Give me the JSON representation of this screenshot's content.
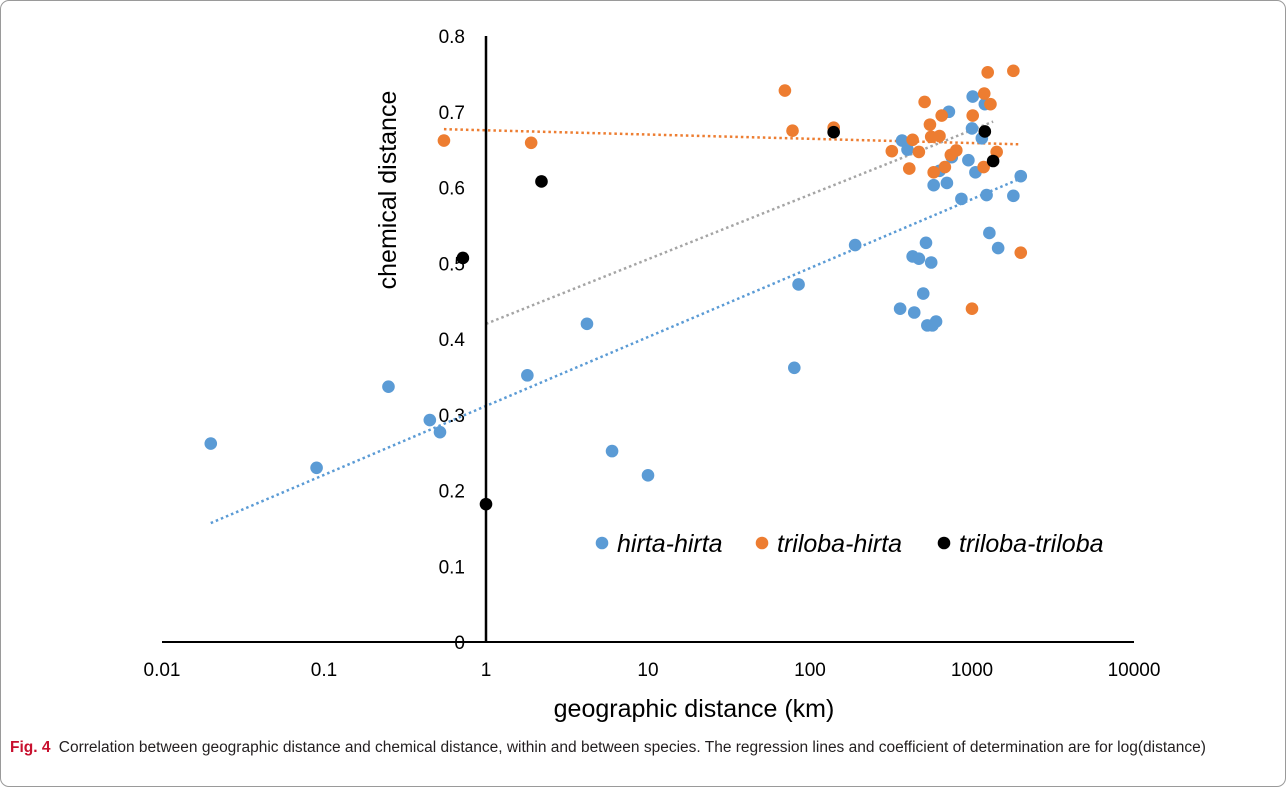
{
  "chart_data": {
    "type": "scatter",
    "xlabel": "geographic distance (km)",
    "ylabel": "chemical distance",
    "x_scale": "log",
    "xlim": [
      0.01,
      10000
    ],
    "ylim": [
      0,
      0.8
    ],
    "x_tick_labels": [
      "0.01",
      "0.1",
      "1",
      "10",
      "100",
      "1000",
      "10000"
    ],
    "x_tick_values": [
      0.01,
      0.1,
      1,
      10,
      100,
      1000,
      10000
    ],
    "y_tick_labels": [
      "0",
      "0.1",
      "0.2",
      "0.3",
      "0.4",
      "0.5",
      "0.6",
      "0.7",
      "0.8"
    ],
    "y_tick_values": [
      0,
      0.1,
      0.2,
      0.3,
      0.4,
      0.5,
      0.6,
      0.7,
      0.8
    ],
    "legend_position": "bottom-right",
    "grid": false,
    "series": [
      {
        "name": "hirta-hirta",
        "color": "#5b9bd5",
        "points": [
          [
            0.02,
            0.262
          ],
          [
            0.09,
            0.23
          ],
          [
            0.25,
            0.337
          ],
          [
            0.45,
            0.293
          ],
          [
            0.52,
            0.277
          ],
          [
            1.8,
            0.352
          ],
          [
            4.2,
            0.42
          ],
          [
            6,
            0.252
          ],
          [
            10,
            0.22
          ],
          [
            80,
            0.362
          ],
          [
            85,
            0.472
          ],
          [
            190,
            0.524
          ],
          [
            360,
            0.44
          ],
          [
            370,
            0.662
          ],
          [
            400,
            0.65
          ],
          [
            430,
            0.509
          ],
          [
            440,
            0.435
          ],
          [
            470,
            0.506
          ],
          [
            500,
            0.46
          ],
          [
            520,
            0.527
          ],
          [
            530,
            0.418
          ],
          [
            560,
            0.501
          ],
          [
            570,
            0.418
          ],
          [
            580,
            0.603
          ],
          [
            600,
            0.423
          ],
          [
            630,
            0.622
          ],
          [
            700,
            0.606
          ],
          [
            720,
            0.7
          ],
          [
            750,
            0.64
          ],
          [
            860,
            0.585
          ],
          [
            950,
            0.636
          ],
          [
            1000,
            0.678
          ],
          [
            1010,
            0.72
          ],
          [
            1050,
            0.62
          ],
          [
            1150,
            0.665
          ],
          [
            1200,
            0.71
          ],
          [
            1230,
            0.59
          ],
          [
            1280,
            0.54
          ],
          [
            1450,
            0.52
          ],
          [
            1800,
            0.589
          ],
          [
            2000,
            0.615
          ]
        ],
        "trendline": [
          [
            0.02,
            0.157
          ],
          [
            2000,
            0.612
          ]
        ]
      },
      {
        "name": "triloba-hirta",
        "color": "#ed7d31",
        "points": [
          [
            0.55,
            0.662
          ],
          [
            1.9,
            0.659
          ],
          [
            70,
            0.728
          ],
          [
            78,
            0.675
          ],
          [
            140,
            0.679
          ],
          [
            320,
            0.648
          ],
          [
            410,
            0.625
          ],
          [
            430,
            0.663
          ],
          [
            470,
            0.647
          ],
          [
            510,
            0.713
          ],
          [
            550,
            0.683
          ],
          [
            560,
            0.667
          ],
          [
            580,
            0.62
          ],
          [
            630,
            0.668
          ],
          [
            650,
            0.695
          ],
          [
            680,
            0.627
          ],
          [
            740,
            0.643
          ],
          [
            800,
            0.649
          ],
          [
            1000,
            0.44
          ],
          [
            1010,
            0.695
          ],
          [
            1180,
            0.627
          ],
          [
            1190,
            0.724
          ],
          [
            1250,
            0.752
          ],
          [
            1300,
            0.71
          ],
          [
            1420,
            0.647
          ],
          [
            1800,
            0.754
          ],
          [
            2000,
            0.514
          ]
        ],
        "trendline": [
          [
            0.55,
            0.677
          ],
          [
            2000,
            0.657
          ]
        ]
      },
      {
        "name": "triloba-triloba",
        "color": "#000000",
        "points": [
          [
            0.72,
            0.507
          ],
          [
            1,
            0.182
          ],
          [
            2.2,
            0.608
          ],
          [
            140,
            0.673
          ],
          [
            1200,
            0.674
          ],
          [
            1350,
            0.635
          ]
        ],
        "trendline": [
          [
            1,
            0.42
          ],
          [
            1350,
            0.687
          ]
        ]
      }
    ]
  },
  "caption": {
    "label": "Fig. 4",
    "text": "Correlation between geographic distance and chemical distance, within and between species. The regression lines and coefficient of determination are for log(distance)"
  }
}
